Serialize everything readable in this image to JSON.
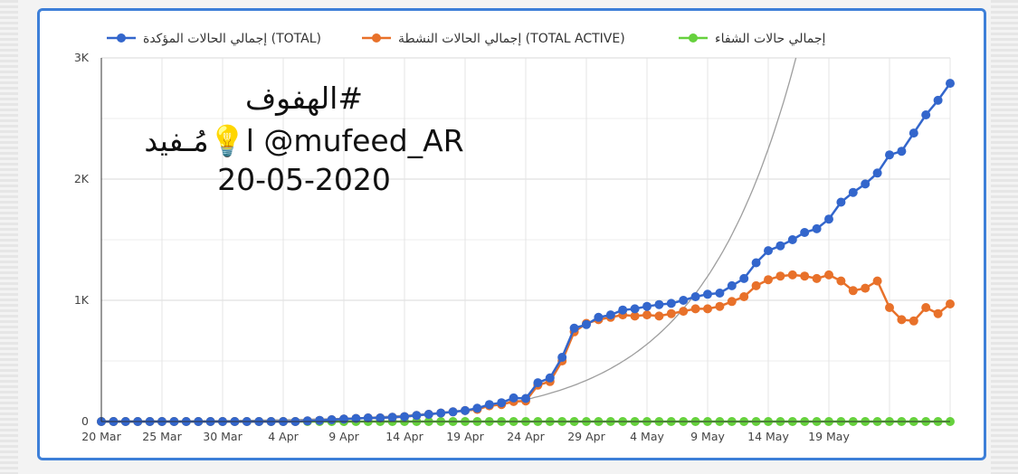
{
  "watermark": {
    "line1": "#الهفوف",
    "line2": "مُـفيد💡l @mufeed_AR",
    "line3": "20-05-2020"
  },
  "chart_data": {
    "type": "line",
    "title": "",
    "xlabel": "",
    "ylabel": "",
    "x_start": "20 Mar",
    "x_tick_labels": [
      "20 Mar",
      "25 Mar",
      "30 Mar",
      "4 Apr",
      "9 Apr",
      "14 Apr",
      "19 Apr",
      "24 Apr",
      "29 Apr",
      "4 May",
      "9 May",
      "14 May",
      "19 May"
    ],
    "y_tick_labels": [
      "0",
      "1K",
      "2K",
      "3K"
    ],
    "ylim": [
      0,
      3000
    ],
    "grid": true,
    "legend_position": "top",
    "trendline": {
      "color": "#9e9e9e"
    },
    "series": [
      {
        "name": "إجمالي الحالات المؤكدة (TOTAL)",
        "color": "#3366cc",
        "values": [
          0,
          0,
          0,
          0,
          0,
          0,
          0,
          0,
          0,
          0,
          0,
          0,
          0,
          0,
          0,
          0,
          0,
          5,
          10,
          15,
          20,
          25,
          30,
          30,
          35,
          40,
          50,
          60,
          70,
          80,
          90,
          110,
          140,
          155,
          195,
          190,
          320,
          360,
          530,
          770,
          800,
          860,
          880,
          920,
          930,
          950,
          965,
          975,
          1000,
          1030,
          1050,
          1060,
          1120,
          1180,
          1310,
          1410,
          1450,
          1500,
          1560,
          1590,
          1670,
          1810,
          1890,
          1960,
          2050,
          2200,
          2230,
          2380,
          2530,
          2650,
          2790
        ]
      },
      {
        "name": "إجمالي الحالات النشطة (TOTAL ACTIVE)",
        "color": "#e8712a",
        "values": [
          0,
          0,
          0,
          0,
          0,
          0,
          0,
          0,
          0,
          0,
          0,
          0,
          0,
          0,
          0,
          0,
          0,
          5,
          10,
          15,
          20,
          25,
          30,
          30,
          35,
          40,
          50,
          60,
          70,
          80,
          90,
          100,
          130,
          140,
          165,
          170,
          300,
          330,
          500,
          740,
          810,
          840,
          860,
          880,
          870,
          880,
          870,
          890,
          910,
          930,
          930,
          950,
          990,
          1030,
          1120,
          1170,
          1200,
          1210,
          1200,
          1180,
          1210,
          1160,
          1080,
          1100,
          1160,
          940,
          840,
          830,
          940,
          890,
          970
        ]
      },
      {
        "name": "إجمالي حالات الشفاء",
        "color": "#66d13d",
        "values": [
          0,
          0,
          0,
          0,
          0,
          0,
          0,
          0,
          0,
          0,
          0,
          0,
          0,
          0,
          0,
          0,
          0,
          0,
          0,
          0,
          0,
          0,
          0,
          0,
          0,
          0,
          0,
          0,
          0,
          0,
          0,
          0,
          0,
          0,
          0,
          0,
          0,
          0,
          0,
          0,
          0,
          0,
          0,
          0,
          0,
          0,
          0,
          0,
          0,
          0,
          0,
          0,
          0,
          0,
          0,
          0,
          0,
          0,
          0,
          0,
          0,
          0,
          0,
          0,
          0,
          0,
          0,
          0,
          0,
          0,
          0
        ]
      }
    ]
  }
}
